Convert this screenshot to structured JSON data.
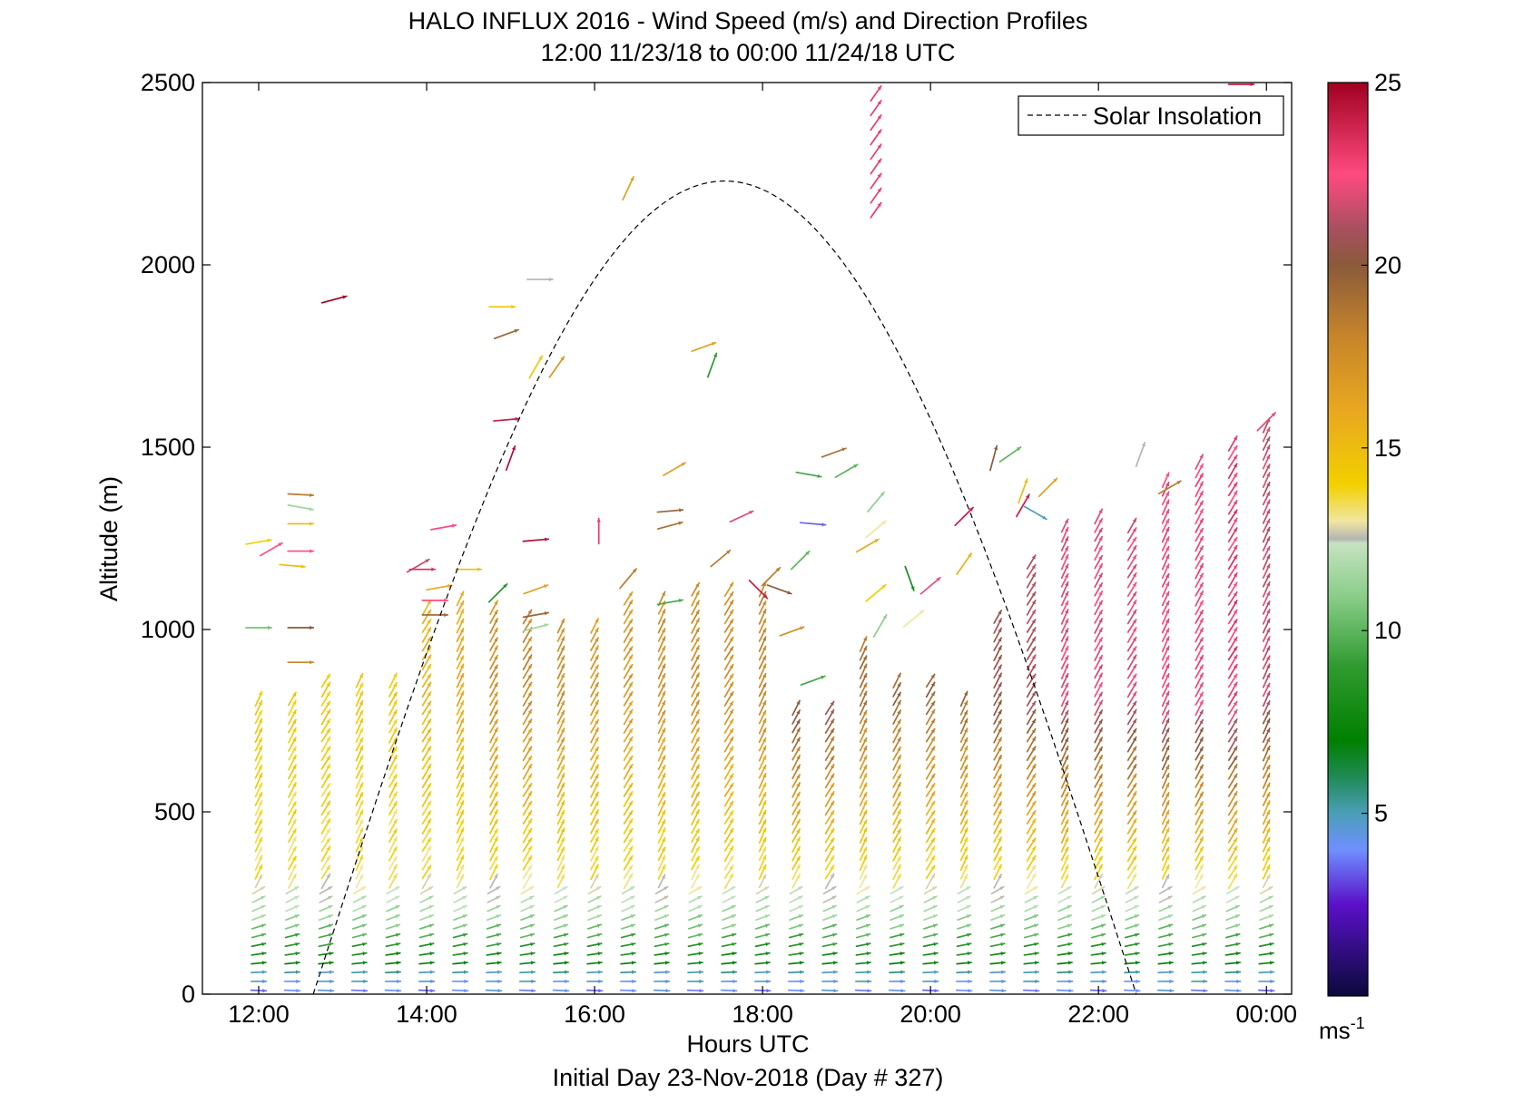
{
  "chart_data": {
    "type": "vector-field",
    "title": "HALO INFLUX 2016 - Wind Speed (m/s) and Direction Profiles",
    "subtitle": "12:00 11/23/18 to 00:00 11/24/18  UTC",
    "xlabel": "Hours UTC",
    "x_sublabel": "Initial Day 23-Nov-2018 (Day # 327)",
    "ylabel": "Altitude (m)",
    "xlim": [
      11.33,
      24.3
    ],
    "ylim": [
      0,
      2500
    ],
    "x_ticks": [
      {
        "value": 12,
        "label": "12:00"
      },
      {
        "value": 14,
        "label": "14:00"
      },
      {
        "value": 16,
        "label": "16:00"
      },
      {
        "value": 18,
        "label": "18:00"
      },
      {
        "value": 20,
        "label": "20:00"
      },
      {
        "value": 22,
        "label": "22:00"
      },
      {
        "value": 24,
        "label": "00:00"
      }
    ],
    "y_ticks": [
      {
        "value": 0,
        "label": "0"
      },
      {
        "value": 500,
        "label": "500"
      },
      {
        "value": 1000,
        "label": "1000"
      },
      {
        "value": 1500,
        "label": "1500"
      },
      {
        "value": 2000,
        "label": "2000"
      },
      {
        "value": 2500,
        "label": "2500"
      }
    ],
    "legend": {
      "label": "Solar Insolation",
      "position": "top-right",
      "style": "dashed"
    },
    "solar_insolation": {
      "start_hour": 12.65,
      "end_hour": 22.45,
      "peak_hour": 17.5,
      "peak_altitude_m": 2230
    },
    "colorbar": {
      "min": 0,
      "max": 25,
      "ticks": [
        {
          "value": 5,
          "label": "5"
        },
        {
          "value": 10,
          "label": "10"
        },
        {
          "value": 15,
          "label": "15"
        },
        {
          "value": 20,
          "label": "20"
        },
        {
          "value": 25,
          "label": "25"
        }
      ],
      "unit_label": "ms-1",
      "stops": [
        {
          "v": 0,
          "c": "#0a0a3a"
        },
        {
          "v": 2.5,
          "c": "#5a10c8"
        },
        {
          "v": 4,
          "c": "#6f8fff"
        },
        {
          "v": 5,
          "c": "#4a9fb8"
        },
        {
          "v": 6,
          "c": "#1f8a55"
        },
        {
          "v": 7,
          "c": "#008000"
        },
        {
          "v": 9,
          "c": "#2f9a2f"
        },
        {
          "v": 11,
          "c": "#8ccf8c"
        },
        {
          "v": 12.4,
          "c": "#c6e2c0"
        },
        {
          "v": 12.5,
          "c": "#b4b4b4"
        },
        {
          "v": 13,
          "c": "#f0e6a0"
        },
        {
          "v": 14,
          "c": "#f2d000"
        },
        {
          "v": 16,
          "c": "#e8a820"
        },
        {
          "v": 18,
          "c": "#c8862a"
        },
        {
          "v": 20,
          "c": "#8a5a3a"
        },
        {
          "v": 21,
          "c": "#a85060"
        },
        {
          "v": 22.5,
          "c": "#ff4a80"
        },
        {
          "v": 25,
          "c": "#a00020"
        }
      ]
    },
    "profile_hours": [
      12,
      12.4,
      12.8,
      13.2,
      13.6,
      14,
      14.4,
      14.8,
      15.2,
      15.6,
      16,
      16.4,
      16.8,
      17.2,
      17.6,
      18,
      18.4,
      18.8,
      19.2,
      19.6,
      20,
      20.4,
      20.8,
      21.2,
      21.6,
      22,
      22.4,
      22.8,
      23.2,
      23.6,
      24
    ],
    "profile_tops_m": [
      820,
      820,
      870,
      870,
      870,
      1080,
      1100,
      1080,
      1050,
      1020,
      1020,
      1100,
      1100,
      1120,
      1120,
      1120,
      790,
      790,
      980,
      860,
      860,
      820,
      1050,
      1200,
      1300,
      1320,
      1300,
      1420,
      1480,
      1530,
      1570
    ],
    "profile_dx_signs": [
      -1,
      -1,
      1,
      1,
      -1,
      -1,
      -1,
      -1,
      -1,
      -1,
      -1,
      -1,
      -1,
      -1,
      -1,
      -1,
      -1,
      -1,
      -1,
      -1,
      -1,
      -1,
      -1,
      -1,
      -1,
      -1,
      -1,
      -1,
      -1,
      -1,
      -1
    ],
    "profile_top_speeds": [
      14.5,
      14.5,
      14.5,
      14.5,
      14.5,
      15.5,
      16,
      17.5,
      18,
      17.5,
      17,
      17,
      17.5,
      17.5,
      17.5,
      18,
      21,
      21,
      19,
      19.5,
      19.5,
      19.5,
      20.5,
      21,
      22,
      22,
      22,
      22.5,
      22.5,
      23,
      21.5
    ],
    "scattered_vectors": [
      {
        "x": 12.0,
        "y": 1240,
        "speed": 14.0,
        "dir": 10
      },
      {
        "x": 12.15,
        "y": 1220,
        "speed": 22.5,
        "dir": 30
      },
      {
        "x": 12.4,
        "y": 1175,
        "speed": 15.0,
        "dir": -5
      },
      {
        "x": 12.5,
        "y": 1215,
        "speed": 22.5,
        "dir": 0
      },
      {
        "x": 12.0,
        "y": 1005,
        "speed": 10.5,
        "dir": 0
      },
      {
        "x": 12.5,
        "y": 1005,
        "speed": 20.0,
        "dir": 0
      },
      {
        "x": 12.5,
        "y": 910,
        "speed": 18.0,
        "dir": 0
      },
      {
        "x": 12.5,
        "y": 1370,
        "speed": 18.5,
        "dir": -3
      },
      {
        "x": 12.5,
        "y": 1335,
        "speed": 11.5,
        "dir": -10
      },
      {
        "x": 12.5,
        "y": 1290,
        "speed": 15.0,
        "dir": 0
      },
      {
        "x": 12.9,
        "y": 1905,
        "speed": 25.0,
        "dir": 15
      },
      {
        "x": 13.9,
        "y": 1175,
        "speed": 21.5,
        "dir": 30
      },
      {
        "x": 13.95,
        "y": 1165,
        "speed": 23.5,
        "dir": 0
      },
      {
        "x": 14.1,
        "y": 1080,
        "speed": 22.5,
        "dir": 0
      },
      {
        "x": 14.1,
        "y": 1040,
        "speed": 19.5,
        "dir": 0
      },
      {
        "x": 14.15,
        "y": 1115,
        "speed": 16.0,
        "dir": 10
      },
      {
        "x": 14.2,
        "y": 1280,
        "speed": 22.5,
        "dir": 10
      },
      {
        "x": 14.5,
        "y": 1165,
        "speed": 15.0,
        "dir": 0
      },
      {
        "x": 14.85,
        "y": 1100,
        "speed": 8.5,
        "dir": 45
      },
      {
        "x": 14.9,
        "y": 1885,
        "speed": 14.5,
        "dir": 0
      },
      {
        "x": 14.95,
        "y": 1810,
        "speed": 19.5,
        "dir": 20
      },
      {
        "x": 14.95,
        "y": 1575,
        "speed": 24.0,
        "dir": 5
      },
      {
        "x": 15.0,
        "y": 1470,
        "speed": 24.5,
        "dir": 70
      },
      {
        "x": 15.3,
        "y": 1245,
        "speed": 24.5,
        "dir": 5
      },
      {
        "x": 15.3,
        "y": 1110,
        "speed": 16.5,
        "dir": 20
      },
      {
        "x": 15.3,
        "y": 1040,
        "speed": 19.5,
        "dir": 10
      },
      {
        "x": 15.3,
        "y": 1005,
        "speed": 11.5,
        "dir": 15
      },
      {
        "x": 15.35,
        "y": 1960,
        "speed": 12.5,
        "dir": 0
      },
      {
        "x": 15.3,
        "y": 1720,
        "speed": 14.5,
        "dir": 60
      },
      {
        "x": 15.55,
        "y": 1720,
        "speed": 17.0,
        "dir": 55
      },
      {
        "x": 16.05,
        "y": 1270,
        "speed": 23.0,
        "dir": 90
      },
      {
        "x": 16.4,
        "y": 2210,
        "speed": 16.5,
        "dir": 65
      },
      {
        "x": 16.4,
        "y": 1140,
        "speed": 18.5,
        "dir": 50
      },
      {
        "x": 16.9,
        "y": 1325,
        "speed": 19.5,
        "dir": 5
      },
      {
        "x": 16.9,
        "y": 1285,
        "speed": 19.0,
        "dir": 15
      },
      {
        "x": 16.9,
        "y": 1075,
        "speed": 9.5,
        "dir": 10
      },
      {
        "x": 16.95,
        "y": 1440,
        "speed": 16.5,
        "dir": 30
      },
      {
        "x": 17.3,
        "y": 1775,
        "speed": 16.5,
        "dir": 20
      },
      {
        "x": 17.4,
        "y": 1725,
        "speed": 9.0,
        "dir": 70
      },
      {
        "x": 17.5,
        "y": 1195,
        "speed": 18.5,
        "dir": 40
      },
      {
        "x": 17.75,
        "y": 1310,
        "speed": 22.0,
        "dir": 25
      },
      {
        "x": 17.95,
        "y": 1110,
        "speed": 24.0,
        "dir": -45
      },
      {
        "x": 18.1,
        "y": 1145,
        "speed": 18.5,
        "dir": 45
      },
      {
        "x": 18.2,
        "y": 1110,
        "speed": 20.0,
        "dir": -20
      },
      {
        "x": 18.35,
        "y": 995,
        "speed": 17.5,
        "dir": 20
      },
      {
        "x": 18.45,
        "y": 1190,
        "speed": 10.0,
        "dir": 45
      },
      {
        "x": 18.55,
        "y": 1425,
        "speed": 9.5,
        "dir": -10
      },
      {
        "x": 18.6,
        "y": 1290,
        "speed": 3.5,
        "dir": -5
      },
      {
        "x": 18.6,
        "y": 860,
        "speed": 9.5,
        "dir": 20
      },
      {
        "x": 18.85,
        "y": 1485,
        "speed": 19.0,
        "dir": 20
      },
      {
        "x": 19.0,
        "y": 1435,
        "speed": 10.0,
        "dir": 30
      },
      {
        "x": 19.25,
        "y": 1230,
        "speed": 16.0,
        "dir": 30
      },
      {
        "x": 19.35,
        "y": 1275,
        "speed": 13.0,
        "dir": 40
      },
      {
        "x": 19.35,
        "y": 1350,
        "speed": 11.0,
        "dir": 50
      },
      {
        "x": 19.35,
        "y": 1100,
        "speed": 14.0,
        "dir": 40
      },
      {
        "x": 19.4,
        "y": 1010,
        "speed": 11.0,
        "dir": 60
      },
      {
        "x": 19.75,
        "y": 1140,
        "speed": 8.0,
        "dir": -70
      },
      {
        "x": 19.8,
        "y": 1030,
        "speed": 13.0,
        "dir": 40
      },
      {
        "x": 20.0,
        "y": 1120,
        "speed": 22.0,
        "dir": 40
      },
      {
        "x": 20.4,
        "y": 1310,
        "speed": 24.0,
        "dir": 45
      },
      {
        "x": 20.4,
        "y": 1180,
        "speed": 15.5,
        "dir": 55
      },
      {
        "x": 20.75,
        "y": 1470,
        "speed": 20.0,
        "dir": 75
      },
      {
        "x": 20.95,
        "y": 1480,
        "speed": 10.0,
        "dir": 35
      },
      {
        "x": 21.1,
        "y": 1340,
        "speed": 24.0,
        "dir": 60
      },
      {
        "x": 21.1,
        "y": 1380,
        "speed": 15.0,
        "dir": 70
      },
      {
        "x": 21.25,
        "y": 1320,
        "speed": 5.0,
        "dir": -30
      },
      {
        "x": 21.4,
        "y": 1390,
        "speed": 16.5,
        "dir": 45
      },
      {
        "x": 22.5,
        "y": 1480,
        "speed": 12.5,
        "dir": 70
      },
      {
        "x": 22.85,
        "y": 1390,
        "speed": 18.5,
        "dir": 30
      },
      {
        "x": 24.0,
        "y": 1570,
        "speed": 22.0,
        "dir": 45
      },
      {
        "x": 23.7,
        "y": 2495,
        "speed": 24.0,
        "dir": 0
      }
    ],
    "vertical_stack": {
      "x": 19.35,
      "from_m": 2150,
      "to_m": 2500,
      "speed": 23.0,
      "dir": 55
    }
  }
}
